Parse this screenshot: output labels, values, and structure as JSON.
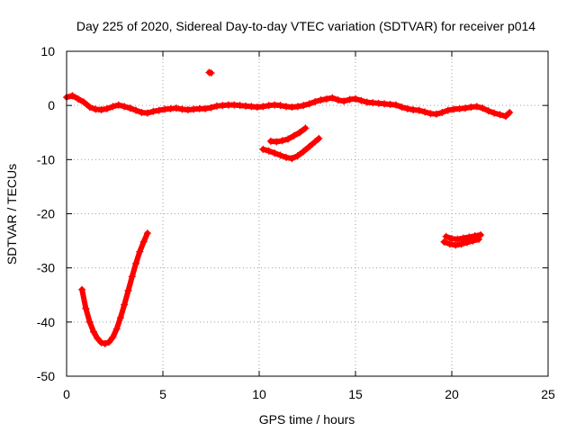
{
  "chart_data": {
    "type": "scatter",
    "title": "Day 225 of 2020, Sidereal Day-to-day VTEC variation (SDTVAR) for receiver p014",
    "xlabel": "GPS time / hours",
    "ylabel": "SDTVAR / TECUs",
    "xlim": [
      0,
      25
    ],
    "ylim": [
      -50,
      10
    ],
    "xticks": [
      0,
      5,
      10,
      15,
      20,
      25
    ],
    "yticks": [
      10,
      0,
      -10,
      -20,
      -30,
      -40,
      -50
    ],
    "grid": true,
    "marker": "+",
    "color": "#ff0000",
    "series": [
      {
        "name": "main-track",
        "x": [
          0.0,
          0.3,
          0.6,
          0.9,
          1.2,
          1.5,
          1.8,
          2.1,
          2.4,
          2.7,
          3.0,
          3.3,
          3.6,
          3.9,
          4.2,
          4.5,
          4.8,
          5.1,
          5.4,
          5.7,
          6.0,
          6.3,
          6.6,
          6.9,
          7.2,
          7.5,
          7.8,
          8.1,
          8.4,
          8.7,
          9.0,
          9.3,
          9.6,
          9.9,
          10.2,
          10.5,
          10.8,
          11.1,
          11.4,
          11.7,
          12.0,
          12.3,
          12.6,
          12.9,
          13.2,
          13.5,
          13.8,
          14.1,
          14.4,
          14.7,
          15.0,
          15.3,
          15.6,
          15.9,
          16.2,
          16.5,
          16.8,
          17.1,
          17.4,
          17.7,
          18.0,
          18.3,
          18.6,
          18.9,
          19.2,
          19.5,
          19.8,
          20.1,
          20.4,
          20.7,
          21.0,
          21.3,
          21.6,
          21.9,
          22.2,
          22.5,
          22.8,
          23.0
        ],
        "y": [
          1.5,
          1.8,
          1.2,
          0.6,
          -0.3,
          -0.7,
          -0.8,
          -0.6,
          -0.2,
          0.1,
          -0.2,
          -0.5,
          -0.9,
          -1.3,
          -1.4,
          -1.1,
          -0.9,
          -0.7,
          -0.6,
          -0.5,
          -0.7,
          -0.8,
          -0.7,
          -0.6,
          -0.6,
          -0.4,
          -0.1,
          0.0,
          0.1,
          0.1,
          0.0,
          -0.1,
          -0.2,
          -0.3,
          -0.2,
          0.0,
          0.1,
          0.0,
          -0.2,
          -0.3,
          -0.2,
          0.0,
          0.3,
          0.7,
          1.0,
          1.2,
          1.4,
          1.0,
          0.8,
          1.1,
          1.2,
          0.9,
          0.6,
          0.5,
          0.4,
          0.3,
          0.2,
          0.1,
          -0.3,
          -0.6,
          -0.8,
          -0.9,
          -1.2,
          -1.5,
          -1.6,
          -1.3,
          -0.9,
          -0.7,
          -0.6,
          -0.5,
          -0.3,
          -0.2,
          -0.5,
          -1.0,
          -1.4,
          -1.7,
          -2.0,
          -1.3
        ]
      },
      {
        "name": "arc-low",
        "x": [
          0.8,
          1.0,
          1.2,
          1.4,
          1.6,
          1.8,
          2.0,
          2.2,
          2.4,
          2.6,
          2.8,
          3.0,
          3.2,
          3.4,
          3.6,
          3.8,
          4.0,
          4.2
        ],
        "y": [
          -34.0,
          -37.5,
          -40.0,
          -41.8,
          -43.0,
          -43.8,
          -44.0,
          -43.7,
          -42.8,
          -41.3,
          -39.2,
          -36.8,
          -34.2,
          -31.6,
          -29.2,
          -27.0,
          -25.2,
          -23.6
        ]
      },
      {
        "name": "arc-mid-upper",
        "x": [
          10.6,
          10.9,
          11.2,
          11.5,
          11.8,
          12.1,
          12.4
        ],
        "y": [
          -6.6,
          -6.7,
          -6.5,
          -6.2,
          -5.6,
          -5.0,
          -4.2
        ]
      },
      {
        "name": "arc-mid-lower",
        "x": [
          10.2,
          10.5,
          10.8,
          11.1,
          11.4,
          11.7,
          12.0,
          12.3,
          12.6,
          12.9,
          13.1
        ],
        "y": [
          -8.1,
          -8.4,
          -8.8,
          -9.2,
          -9.6,
          -9.8,
          -9.3,
          -8.5,
          -7.6,
          -6.7,
          -6.1
        ]
      },
      {
        "name": "cluster-20h-upper",
        "x": [
          19.7,
          20.0,
          20.3,
          20.6,
          20.9,
          21.2,
          21.5
        ],
        "y": [
          -24.2,
          -24.6,
          -24.7,
          -24.5,
          -24.3,
          -24.1,
          -23.9
        ]
      },
      {
        "name": "cluster-20h-lower",
        "x": [
          19.6,
          19.9,
          20.2,
          20.5,
          20.8,
          21.1,
          21.4
        ],
        "y": [
          -25.2,
          -25.6,
          -25.8,
          -25.6,
          -25.3,
          -25.0,
          -24.7
        ]
      },
      {
        "name": "outlier",
        "x": [
          7.4,
          7.5
        ],
        "y": [
          6.1,
          6.0
        ]
      }
    ]
  }
}
